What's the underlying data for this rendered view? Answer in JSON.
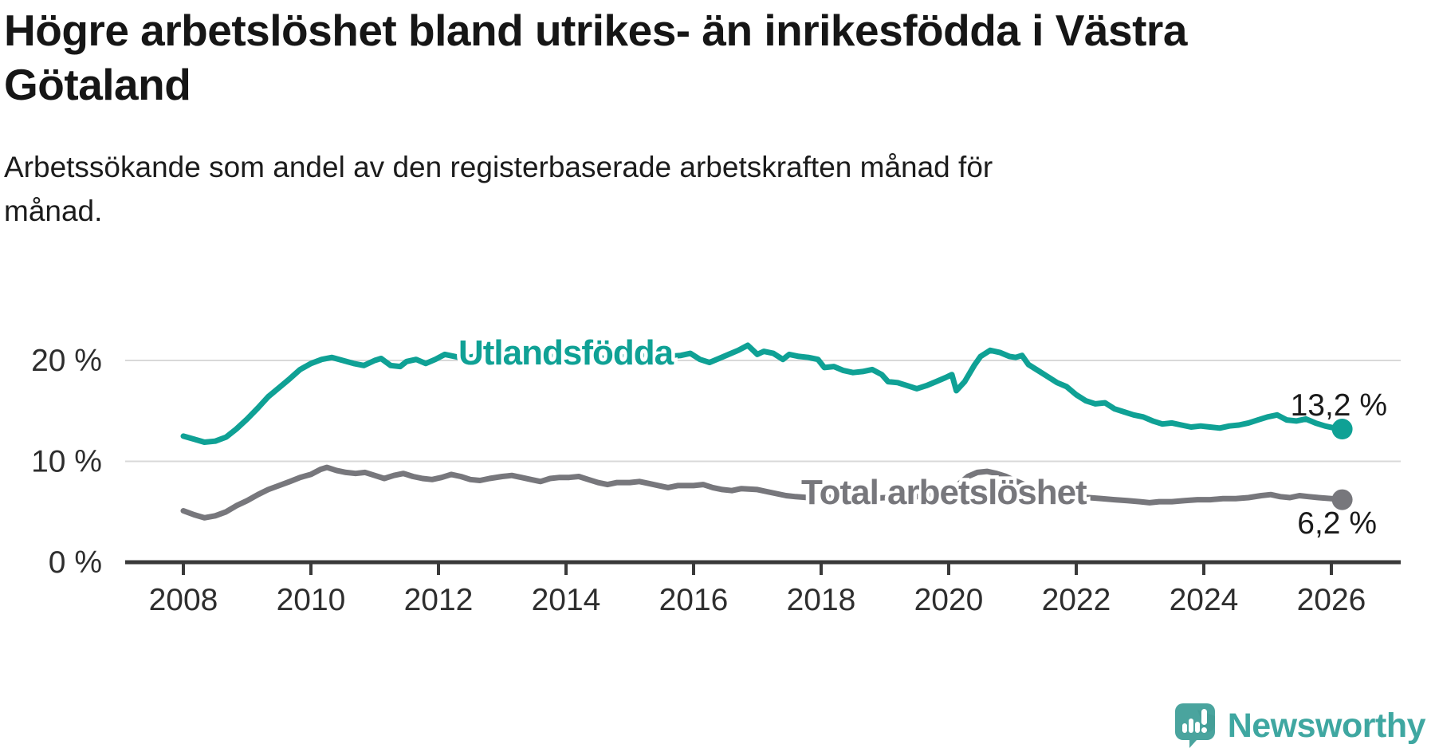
{
  "header": {
    "title": "Högre arbetslöshet bland utrikes- än inrikesfödda i Västra\nGötaland",
    "subtitle": "Arbetssökande som andel av den registerbaserade arbetskraften månad för\nmånad."
  },
  "footer": {
    "brand": "Newsworthy",
    "logo_icon": "speech-bubble-bar-chart-icon"
  },
  "colors": {
    "teal_line": "#0fa195",
    "gray_line": "#77777c",
    "grid": "#d9d9d9",
    "axis": "#3a3a3a",
    "tick_text": "#2e2e2e",
    "value_text": "#1a1a1a",
    "brand_teal": "#3fa7a1"
  },
  "chart_data": {
    "type": "line",
    "title": "Högre arbetslöshet bland utrikes- än inrikesfödda i Västra Götaland",
    "subtitle": "Arbetssökande som andel av den registerbaserade arbetskraften månad för månad.",
    "xlabel": "",
    "ylabel": "",
    "grid": "horizontal",
    "legend_position": "inline-labels",
    "xlim": [
      2007.1,
      2026.6
    ],
    "ylim": [
      0,
      23.5
    ],
    "x_ticks": [
      {
        "year": 2008,
        "label": "2008"
      },
      {
        "year": 2010,
        "label": "2010"
      },
      {
        "year": 2012,
        "label": "2012"
      },
      {
        "year": 2014,
        "label": "2014"
      },
      {
        "year": 2016,
        "label": "2016"
      },
      {
        "year": 2018,
        "label": "2018"
      },
      {
        "year": 2020,
        "label": "2020"
      },
      {
        "year": 2022,
        "label": "2022"
      },
      {
        "year": 2024,
        "label": "2024"
      },
      {
        "year": 2026,
        "label": "2026"
      }
    ],
    "y_ticks": [
      {
        "value": 0,
        "label": "0 %"
      },
      {
        "value": 10,
        "label": "10 %"
      },
      {
        "value": 20,
        "label": "20 %"
      }
    ],
    "series": [
      {
        "name": "Utlandsfödda",
        "color": "#0fa195",
        "end_label": "13,2 %",
        "end_value": 13.2,
        "points": [
          [
            2008.0,
            12.5
          ],
          [
            2008.17,
            12.2
          ],
          [
            2008.33,
            11.9
          ],
          [
            2008.5,
            12.0
          ],
          [
            2008.67,
            12.4
          ],
          [
            2008.83,
            13.2
          ],
          [
            2009.0,
            14.2
          ],
          [
            2009.17,
            15.3
          ],
          [
            2009.33,
            16.4
          ],
          [
            2009.5,
            17.3
          ],
          [
            2009.67,
            18.2
          ],
          [
            2009.83,
            19.1
          ],
          [
            2010.0,
            19.7
          ],
          [
            2010.17,
            20.1
          ],
          [
            2010.33,
            20.3
          ],
          [
            2010.5,
            20.0
          ],
          [
            2010.67,
            19.7
          ],
          [
            2010.83,
            19.5
          ],
          [
            2011.0,
            20.0
          ],
          [
            2011.1,
            20.2
          ],
          [
            2011.25,
            19.5
          ],
          [
            2011.4,
            19.4
          ],
          [
            2011.5,
            19.9
          ],
          [
            2011.65,
            20.1
          ],
          [
            2011.8,
            19.7
          ],
          [
            2011.95,
            20.1
          ],
          [
            2012.1,
            20.6
          ],
          [
            2012.25,
            20.4
          ],
          [
            2012.4,
            20.2
          ],
          [
            2012.55,
            20.4
          ],
          [
            2012.7,
            20.2
          ],
          [
            2012.85,
            20.1
          ],
          [
            2013.0,
            20.3
          ],
          [
            2013.2,
            20.5
          ],
          [
            2013.4,
            20.3
          ],
          [
            2013.6,
            20.2
          ],
          [
            2013.8,
            20.4
          ],
          [
            2014.0,
            20.5
          ],
          [
            2014.2,
            20.6
          ],
          [
            2014.4,
            20.4
          ],
          [
            2014.6,
            20.2
          ],
          [
            2014.8,
            20.3
          ],
          [
            2015.0,
            20.4
          ],
          [
            2015.2,
            20.5
          ],
          [
            2015.4,
            20.3
          ],
          [
            2015.6,
            20.4
          ],
          [
            2015.8,
            20.5
          ],
          [
            2015.95,
            20.7
          ],
          [
            2016.1,
            20.1
          ],
          [
            2016.25,
            19.8
          ],
          [
            2016.4,
            20.2
          ],
          [
            2016.55,
            20.6
          ],
          [
            2016.7,
            21.0
          ],
          [
            2016.85,
            21.5
          ],
          [
            2017.0,
            20.6
          ],
          [
            2017.1,
            20.9
          ],
          [
            2017.25,
            20.7
          ],
          [
            2017.4,
            20.1
          ],
          [
            2017.5,
            20.6
          ],
          [
            2017.65,
            20.4
          ],
          [
            2017.8,
            20.3
          ],
          [
            2017.95,
            20.1
          ],
          [
            2018.05,
            19.3
          ],
          [
            2018.2,
            19.4
          ],
          [
            2018.35,
            19.0
          ],
          [
            2018.5,
            18.8
          ],
          [
            2018.65,
            18.9
          ],
          [
            2018.8,
            19.1
          ],
          [
            2018.95,
            18.6
          ],
          [
            2019.05,
            17.9
          ],
          [
            2019.2,
            17.8
          ],
          [
            2019.35,
            17.5
          ],
          [
            2019.5,
            17.2
          ],
          [
            2019.65,
            17.5
          ],
          [
            2019.8,
            17.9
          ],
          [
            2019.95,
            18.3
          ],
          [
            2020.05,
            18.6
          ],
          [
            2020.12,
            17.0
          ],
          [
            2020.25,
            17.9
          ],
          [
            2020.4,
            19.5
          ],
          [
            2020.5,
            20.4
          ],
          [
            2020.65,
            21.0
          ],
          [
            2020.8,
            20.8
          ],
          [
            2020.95,
            20.4
          ],
          [
            2021.05,
            20.3
          ],
          [
            2021.15,
            20.5
          ],
          [
            2021.25,
            19.6
          ],
          [
            2021.4,
            19.0
          ],
          [
            2021.55,
            18.4
          ],
          [
            2021.7,
            17.8
          ],
          [
            2021.85,
            17.4
          ],
          [
            2022.0,
            16.6
          ],
          [
            2022.15,
            16.0
          ],
          [
            2022.3,
            15.7
          ],
          [
            2022.45,
            15.8
          ],
          [
            2022.6,
            15.2
          ],
          [
            2022.75,
            14.9
          ],
          [
            2022.9,
            14.6
          ],
          [
            2023.05,
            14.4
          ],
          [
            2023.2,
            14.0
          ],
          [
            2023.35,
            13.7
          ],
          [
            2023.5,
            13.8
          ],
          [
            2023.65,
            13.6
          ],
          [
            2023.8,
            13.4
          ],
          [
            2023.95,
            13.5
          ],
          [
            2024.1,
            13.4
          ],
          [
            2024.25,
            13.3
          ],
          [
            2024.4,
            13.5
          ],
          [
            2024.55,
            13.6
          ],
          [
            2024.7,
            13.8
          ],
          [
            2024.85,
            14.1
          ],
          [
            2025.0,
            14.4
          ],
          [
            2025.15,
            14.6
          ],
          [
            2025.3,
            14.1
          ],
          [
            2025.45,
            14.0
          ],
          [
            2025.6,
            14.2
          ],
          [
            2025.75,
            13.8
          ],
          [
            2025.9,
            13.5
          ],
          [
            2026.05,
            13.3
          ],
          [
            2026.17,
            13.2
          ]
        ]
      },
      {
        "name": "Total arbetslöshet",
        "color": "#77777c",
        "end_label": "6,2 %",
        "end_value": 6.2,
        "points": [
          [
            2008.0,
            5.1
          ],
          [
            2008.17,
            4.7
          ],
          [
            2008.33,
            4.4
          ],
          [
            2008.5,
            4.6
          ],
          [
            2008.67,
            5.0
          ],
          [
            2008.83,
            5.6
          ],
          [
            2009.0,
            6.1
          ],
          [
            2009.17,
            6.7
          ],
          [
            2009.33,
            7.2
          ],
          [
            2009.5,
            7.6
          ],
          [
            2009.67,
            8.0
          ],
          [
            2009.83,
            8.4
          ],
          [
            2010.0,
            8.7
          ],
          [
            2010.15,
            9.2
          ],
          [
            2010.25,
            9.4
          ],
          [
            2010.4,
            9.1
          ],
          [
            2010.55,
            8.9
          ],
          [
            2010.7,
            8.8
          ],
          [
            2010.85,
            8.9
          ],
          [
            2011.0,
            8.6
          ],
          [
            2011.15,
            8.3
          ],
          [
            2011.3,
            8.6
          ],
          [
            2011.45,
            8.8
          ],
          [
            2011.6,
            8.5
          ],
          [
            2011.75,
            8.3
          ],
          [
            2011.9,
            8.2
          ],
          [
            2012.05,
            8.4
          ],
          [
            2012.2,
            8.7
          ],
          [
            2012.35,
            8.5
          ],
          [
            2012.5,
            8.2
          ],
          [
            2012.65,
            8.1
          ],
          [
            2012.8,
            8.3
          ],
          [
            2013.0,
            8.5
          ],
          [
            2013.15,
            8.6
          ],
          [
            2013.3,
            8.4
          ],
          [
            2013.45,
            8.2
          ],
          [
            2013.6,
            8.0
          ],
          [
            2013.75,
            8.3
          ],
          [
            2013.9,
            8.4
          ],
          [
            2014.05,
            8.4
          ],
          [
            2014.2,
            8.5
          ],
          [
            2014.35,
            8.2
          ],
          [
            2014.5,
            7.9
          ],
          [
            2014.65,
            7.7
          ],
          [
            2014.8,
            7.9
          ],
          [
            2015.0,
            7.9
          ],
          [
            2015.15,
            8.0
          ],
          [
            2015.3,
            7.8
          ],
          [
            2015.45,
            7.6
          ],
          [
            2015.6,
            7.4
          ],
          [
            2015.75,
            7.6
          ],
          [
            2016.0,
            7.6
          ],
          [
            2016.15,
            7.7
          ],
          [
            2016.3,
            7.4
          ],
          [
            2016.45,
            7.2
          ],
          [
            2016.6,
            7.1
          ],
          [
            2016.75,
            7.3
          ],
          [
            2017.0,
            7.2
          ],
          [
            2017.15,
            7.0
          ],
          [
            2017.3,
            6.8
          ],
          [
            2017.45,
            6.6
          ],
          [
            2017.6,
            6.5
          ],
          [
            2017.8,
            6.4
          ],
          [
            2018.0,
            6.5
          ],
          [
            2018.25,
            6.4
          ],
          [
            2018.5,
            6.3
          ],
          [
            2018.75,
            6.3
          ],
          [
            2019.0,
            6.4
          ],
          [
            2019.25,
            6.4
          ],
          [
            2019.5,
            6.5
          ],
          [
            2019.75,
            6.7
          ],
          [
            2020.0,
            7.0
          ],
          [
            2020.15,
            7.7
          ],
          [
            2020.3,
            8.5
          ],
          [
            2020.45,
            8.9
          ],
          [
            2020.6,
            9.0
          ],
          [
            2020.75,
            8.8
          ],
          [
            2020.9,
            8.5
          ],
          [
            2021.0,
            8.2
          ],
          [
            2021.15,
            7.8
          ],
          [
            2021.3,
            7.4
          ],
          [
            2021.45,
            7.1
          ],
          [
            2021.6,
            6.9
          ],
          [
            2021.8,
            6.7
          ],
          [
            2022.0,
            6.5
          ],
          [
            2022.2,
            6.4
          ],
          [
            2022.4,
            6.3
          ],
          [
            2022.6,
            6.2
          ],
          [
            2022.8,
            6.1
          ],
          [
            2023.0,
            6.0
          ],
          [
            2023.15,
            5.9
          ],
          [
            2023.3,
            6.0
          ],
          [
            2023.5,
            6.0
          ],
          [
            2023.7,
            6.1
          ],
          [
            2023.9,
            6.2
          ],
          [
            2024.1,
            6.2
          ],
          [
            2024.3,
            6.3
          ],
          [
            2024.5,
            6.3
          ],
          [
            2024.7,
            6.4
          ],
          [
            2024.9,
            6.6
          ],
          [
            2025.05,
            6.7
          ],
          [
            2025.2,
            6.5
          ],
          [
            2025.35,
            6.4
          ],
          [
            2025.5,
            6.6
          ],
          [
            2025.65,
            6.5
          ],
          [
            2025.8,
            6.4
          ],
          [
            2026.0,
            6.3
          ],
          [
            2026.17,
            6.2
          ]
        ]
      }
    ]
  }
}
